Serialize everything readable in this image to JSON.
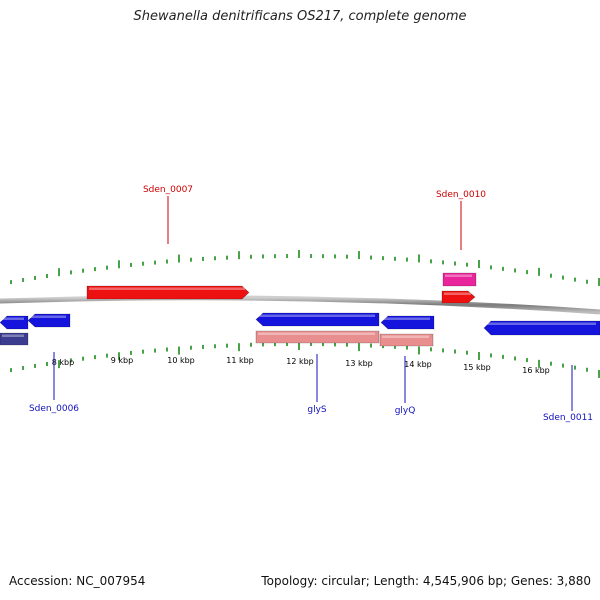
{
  "title": "Shewanella denitrificans OS217, complete genome",
  "accession": "Accession: NC_007954",
  "summary": "Topology: circular; Length: 4,545,906 bp; Genes: 3,880",
  "colors": {
    "backbone": "#9a9a9a",
    "tick": "#1a8a1a",
    "forward_cds": "#ee1111",
    "forward_rna": "#e8259a",
    "reverse_cds": "#1414dd",
    "reverse_rna": "#e88e8e",
    "reverse_other": "#3b3b8f",
    "label_forward": "#cc0000",
    "label_reverse": "#1010bb"
  },
  "scale_labels": [
    "8 kbp",
    "9 kbp",
    "10 kbp",
    "11 kbp",
    "12 kbp",
    "13 kbp",
    "14 kbp",
    "15 kbp",
    "16 kbp"
  ],
  "gene_labels": [
    {
      "text": "Sden_0007",
      "strand": "forward"
    },
    {
      "text": "Sden_0010",
      "strand": "forward"
    },
    {
      "text": "Sden_0006",
      "strand": "reverse"
    },
    {
      "text": "glyS",
      "strand": "reverse"
    },
    {
      "text": "glyQ",
      "strand": "reverse"
    },
    {
      "text": "Sden_0011",
      "strand": "reverse"
    }
  ]
}
